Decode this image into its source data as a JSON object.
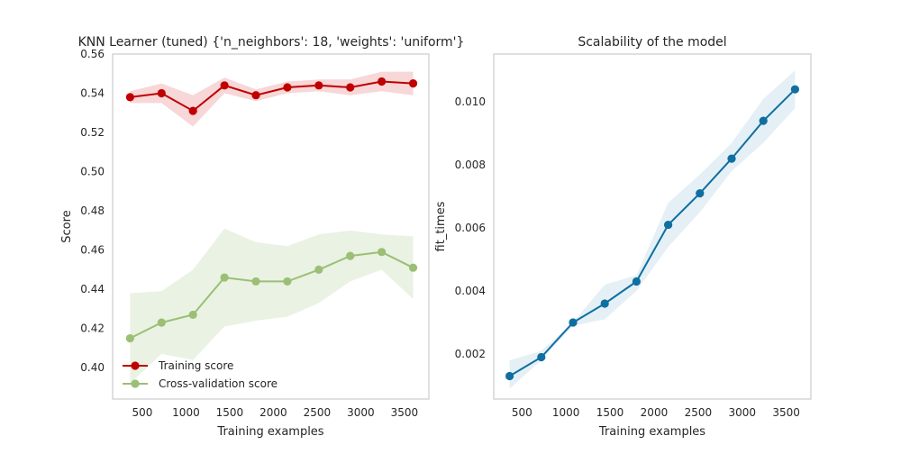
{
  "chart_data": [
    {
      "type": "line",
      "title": "KNN Learner (tuned) {'n_neighbors': 18, 'weights': 'uniform'}",
      "xlabel": "Training examples",
      "ylabel": "Score",
      "xlim": [
        160,
        3780
      ],
      "ylim": [
        0.384,
        0.56
      ],
      "xticks": [
        500,
        1000,
        1500,
        2000,
        2500,
        3000,
        3500
      ],
      "yticks": [
        0.4,
        0.42,
        0.44,
        0.46,
        0.48,
        0.5,
        0.52,
        0.54,
        0.56
      ],
      "grid": false,
      "legend_position": "lower-left",
      "x": [
        360,
        720,
        1080,
        1440,
        1800,
        2160,
        2520,
        2880,
        3240,
        3600
      ],
      "series": [
        {
          "name": "Training score",
          "color": "#C00000",
          "band_color": "#F4C9C9",
          "values": [
            0.538,
            0.54,
            0.531,
            0.544,
            0.539,
            0.543,
            0.544,
            0.543,
            0.546,
            0.545
          ],
          "band_upper": [
            0.541,
            0.545,
            0.539,
            0.548,
            0.542,
            0.546,
            0.547,
            0.547,
            0.551,
            0.551
          ],
          "band_lower": [
            0.535,
            0.535,
            0.523,
            0.54,
            0.536,
            0.54,
            0.541,
            0.539,
            0.541,
            0.539
          ]
        },
        {
          "name": "Cross-validation score",
          "color": "#9BBF75",
          "band_color": "#E3EDDA",
          "values": [
            0.415,
            0.423,
            0.427,
            0.446,
            0.444,
            0.444,
            0.45,
            0.457,
            0.459,
            0.451
          ],
          "band_upper": [
            0.438,
            0.439,
            0.45,
            0.471,
            0.464,
            0.462,
            0.468,
            0.47,
            0.468,
            0.467
          ],
          "band_lower": [
            0.392,
            0.407,
            0.404,
            0.421,
            0.424,
            0.426,
            0.433,
            0.444,
            0.45,
            0.435
          ]
        }
      ]
    },
    {
      "type": "line",
      "title": "Scalability of the model",
      "xlabel": "Training examples",
      "ylabel": "fit_times",
      "xlim": [
        180,
        3780
      ],
      "ylim": [
        0.00057,
        0.01152
      ],
      "xticks": [
        500,
        1000,
        1500,
        2000,
        2500,
        3000,
        3500
      ],
      "yticks": [
        0.002,
        0.004,
        0.006,
        0.008,
        0.01
      ],
      "grid": false,
      "x": [
        360,
        720,
        1080,
        1440,
        1800,
        2160,
        2520,
        2880,
        3240,
        3600
      ],
      "series": [
        {
          "color": "#0F6FA0",
          "band_color": "#DCEBF3",
          "values": [
            0.0013,
            0.0019,
            0.003,
            0.0036,
            0.0043,
            0.0061,
            0.0071,
            0.0082,
            0.0094,
            0.0104
          ],
          "band_upper": [
            0.0018,
            0.0021,
            0.003,
            0.0042,
            0.0045,
            0.0068,
            0.0077,
            0.0087,
            0.0101,
            0.011
          ],
          "band_lower": [
            0.0009,
            0.0018,
            0.0029,
            0.0031,
            0.004,
            0.0054,
            0.0065,
            0.0078,
            0.0087,
            0.0098
          ]
        }
      ]
    }
  ]
}
